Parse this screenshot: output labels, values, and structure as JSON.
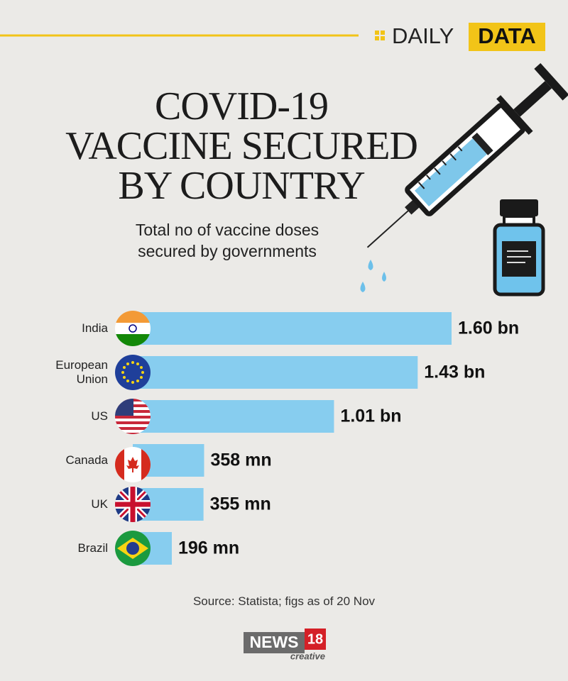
{
  "header": {
    "left": "DAILY",
    "right": "DATA"
  },
  "chart_data": {
    "type": "bar",
    "orientation": "horizontal",
    "title": [
      "COVID-19",
      "VACCINE SECURED",
      "BY COUNTRY"
    ],
    "subtitle": [
      "Total no of vaccine doses",
      "secured by governments"
    ],
    "categories": [
      "India",
      "European Union",
      "US",
      "Canada",
      "UK",
      "Brazil"
    ],
    "values": [
      1600,
      1430,
      1010,
      358,
      355,
      196
    ],
    "value_labels": [
      "1.60 bn",
      "1.43 bn",
      "1.01 bn",
      "358 mn",
      "355 mn",
      "196 mn"
    ],
    "color": "#87cdef"
  },
  "source": "Source: Statista; figs as of 20 Nov",
  "logo": {
    "name": "NEWS",
    "number": "18",
    "tag": "creative"
  }
}
